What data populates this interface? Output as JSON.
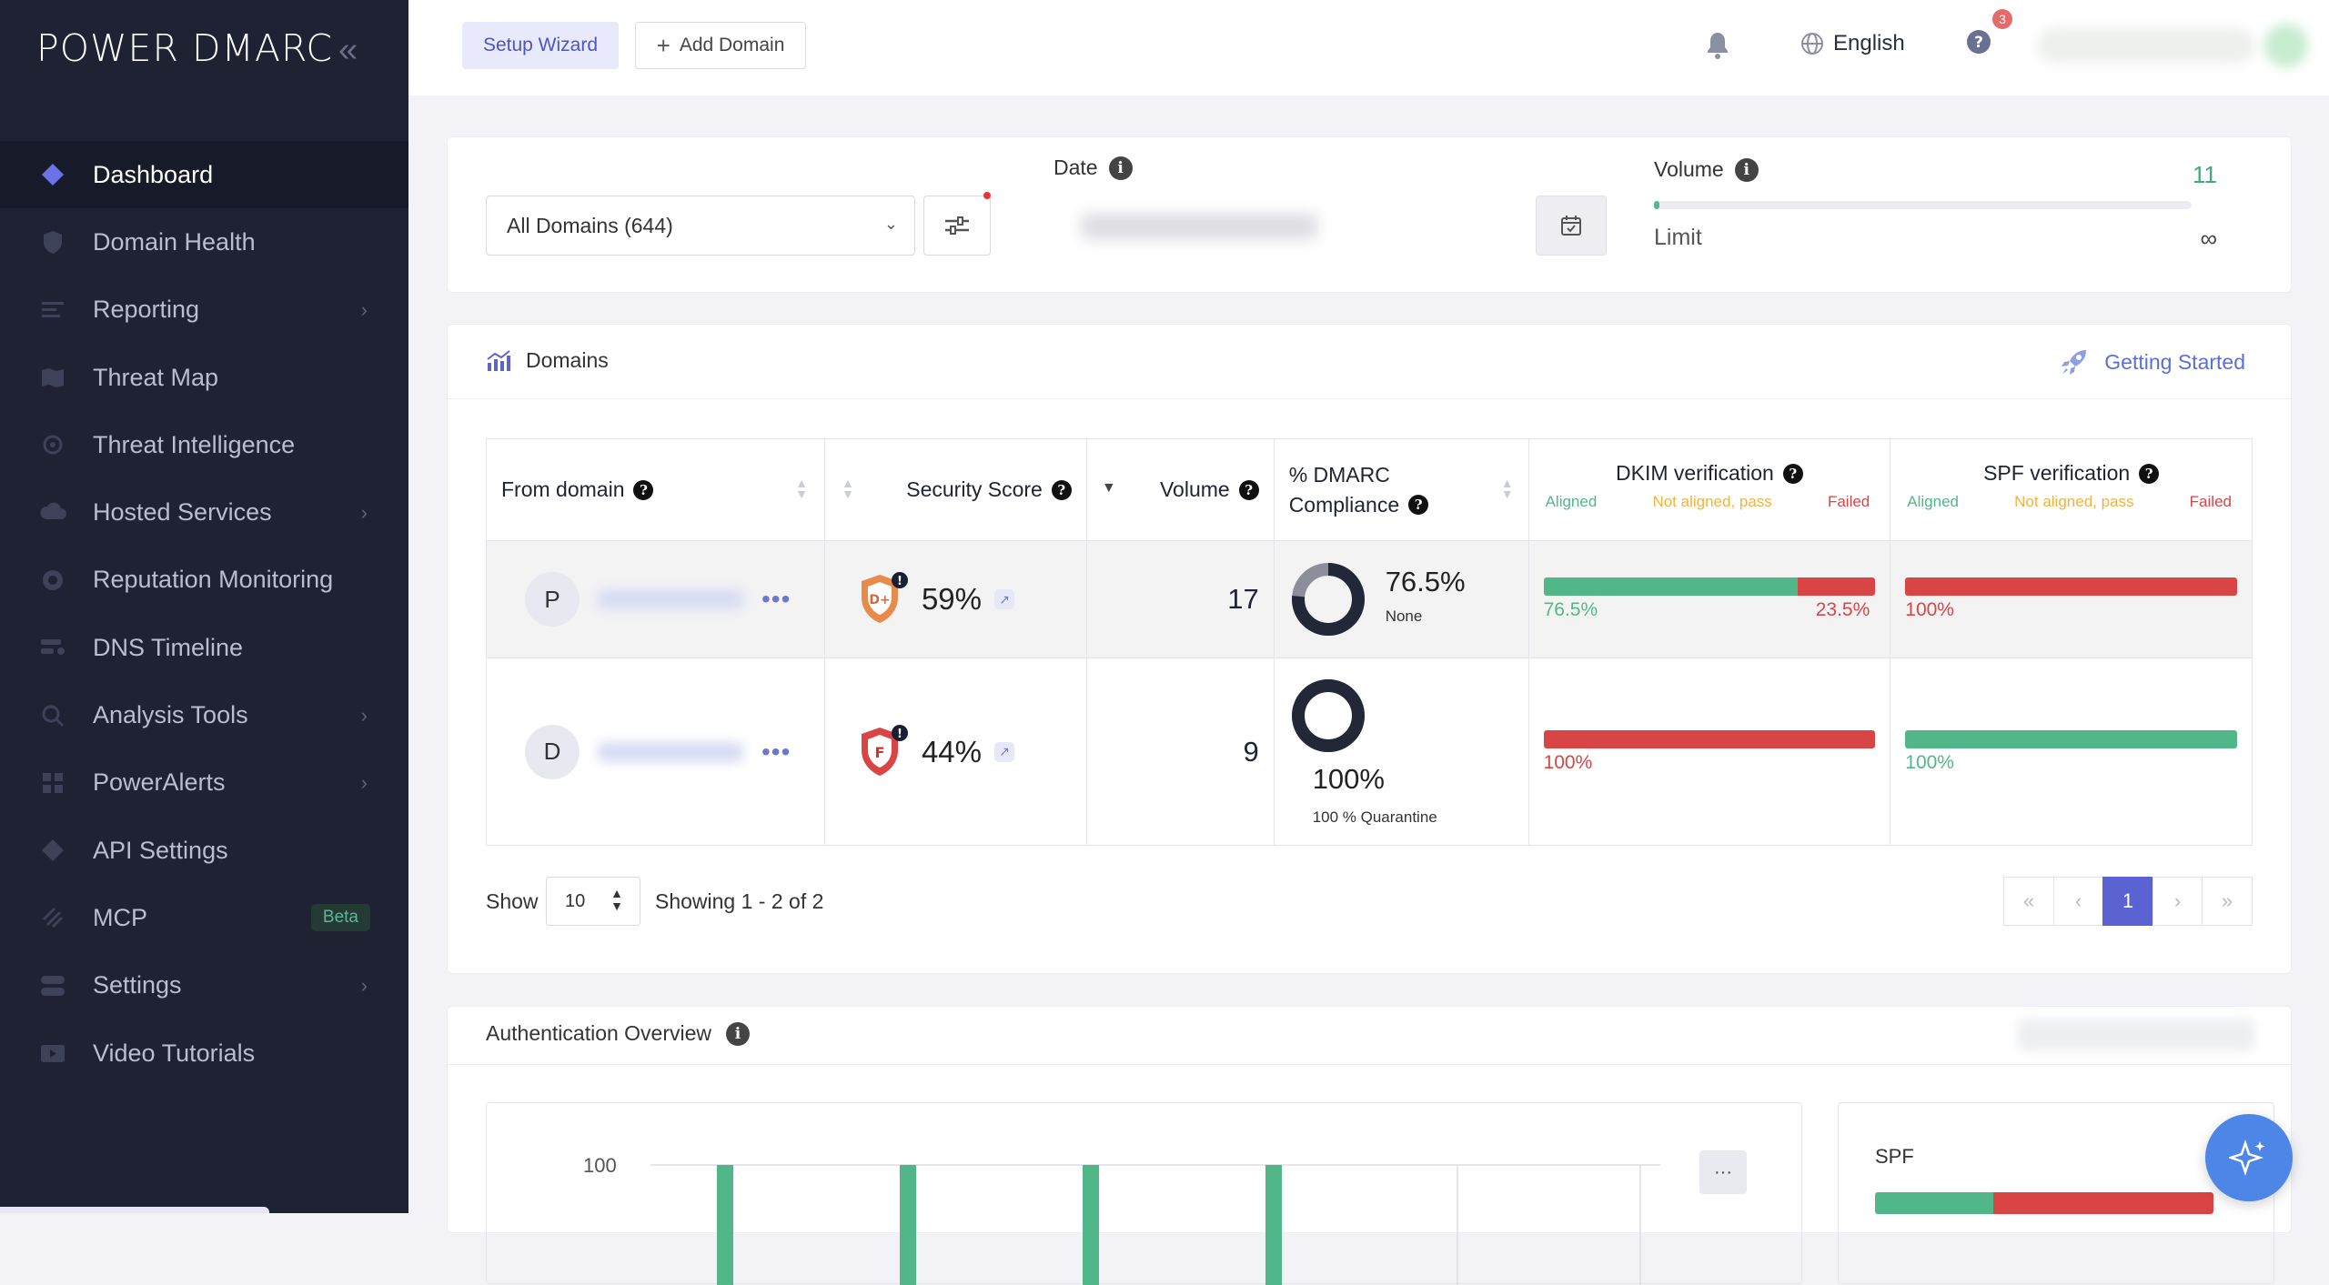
{
  "brand": {
    "logo": "POWER DMARC"
  },
  "sidebar": {
    "items": [
      {
        "label": "Dashboard",
        "icon": "diamond-icon",
        "active": true
      },
      {
        "label": "Domain Health",
        "icon": "shield-check-icon"
      },
      {
        "label": "Reporting",
        "icon": "report-icon",
        "has_children": true
      },
      {
        "label": "Threat Map",
        "icon": "map-icon"
      },
      {
        "label": "Threat Intelligence",
        "icon": "crosshair-icon"
      },
      {
        "label": "Hosted Services",
        "icon": "cloud-icon",
        "has_children": true
      },
      {
        "label": "Reputation Monitoring",
        "icon": "gauge-icon"
      },
      {
        "label": "DNS Timeline",
        "icon": "timeline-icon"
      },
      {
        "label": "Analysis Tools",
        "icon": "search-icon",
        "has_children": true
      },
      {
        "label": "PowerAlerts",
        "icon": "grid-icon",
        "has_children": true
      },
      {
        "label": "API Settings",
        "icon": "api-diamond-icon"
      },
      {
        "label": "MCP",
        "icon": "mcp-icon",
        "badge": "Beta"
      },
      {
        "label": "Settings",
        "icon": "toggle-icon",
        "has_children": true
      },
      {
        "label": "Video Tutorials",
        "icon": "video-icon"
      }
    ]
  },
  "topbar": {
    "setup_wizard": "Setup Wizard",
    "add_domain": "Add Domain",
    "language": "English",
    "notification_count": "3"
  },
  "filters": {
    "domain_select": "All Domains (644)",
    "date_label": "Date",
    "volume_label": "Volume",
    "volume_value": "11",
    "volume_fraction": 0.01,
    "limit_label": "Limit",
    "limit_value": "∞"
  },
  "domains": {
    "title": "Domains",
    "getting_started": "Getting Started",
    "columns": {
      "from_domain": "From domain",
      "security_score": "Security Score",
      "volume": "Volume",
      "dmarc_line1": "% DMARC",
      "dmarc_line2": "Compliance",
      "dkim": "DKIM verification",
      "spf": "SPF verification"
    },
    "sub_labels": {
      "aligned": "Aligned",
      "not_aligned": "Not aligned, pass",
      "failed": "Failed"
    },
    "rows": [
      {
        "initial": "P",
        "grade": "D+",
        "score": "59%",
        "volume": "17",
        "dmarc_pct": "76.5%",
        "dmarc_policy": "None",
        "dmarc_fraction": 0.765,
        "dkim": {
          "aligned": 76.5,
          "failed": 23.5,
          "aligned_label": "76.5%",
          "failed_label": "23.5%"
        },
        "spf": {
          "aligned": 0,
          "failed": 100,
          "label": "100%"
        }
      },
      {
        "initial": "D",
        "grade": "F",
        "score": "44%",
        "volume": "9",
        "dmarc_pct": "100%",
        "dmarc_policy": "100 % Quarantine",
        "dmarc_fraction": 1.0,
        "dkim": {
          "aligned": 0,
          "failed": 100,
          "label": "100%"
        },
        "spf": {
          "aligned": 100,
          "failed": 0,
          "label": "100%"
        }
      }
    ],
    "footer": {
      "show": "Show",
      "page_size": "10",
      "showing": "Showing 1 - 2 of 2",
      "current_page": "1"
    }
  },
  "auth_overview": {
    "title": "Authentication Overview",
    "y_tick": "100",
    "menu": "···",
    "spf_label": "SPF",
    "spf_fraction_aligned": 0.35
  },
  "colors": {
    "sidebar": "#1e2233",
    "accent": "#5b62d2",
    "green": "#52b788",
    "red": "#d94545"
  }
}
